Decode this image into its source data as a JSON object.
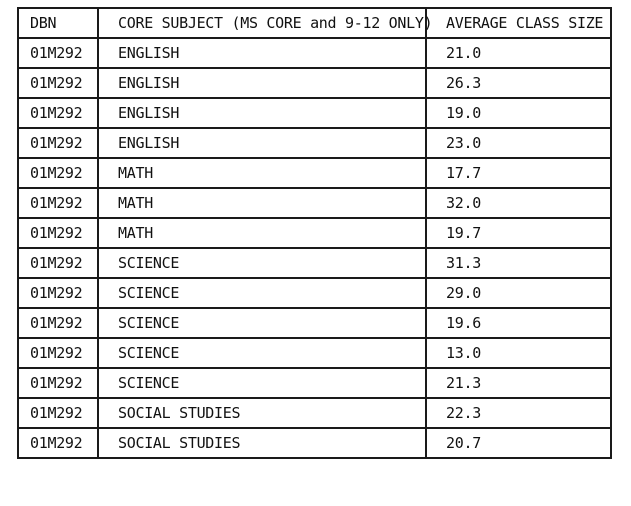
{
  "table": {
    "headers": [
      "DBN",
      "CORE SUBJECT (MS CORE and 9-12 ONLY)",
      "AVERAGE CLASS SIZE"
    ],
    "rows": [
      [
        "01M292",
        "ENGLISH",
        "21.0"
      ],
      [
        "01M292",
        "ENGLISH",
        "26.3"
      ],
      [
        "01M292",
        "ENGLISH",
        "19.0"
      ],
      [
        "01M292",
        "ENGLISH",
        "23.0"
      ],
      [
        "01M292",
        "MATH",
        "17.7"
      ],
      [
        "01M292",
        "MATH",
        "32.0"
      ],
      [
        "01M292",
        "MATH",
        "19.7"
      ],
      [
        "01M292",
        "SCIENCE",
        "31.3"
      ],
      [
        "01M292",
        "SCIENCE",
        "29.0"
      ],
      [
        "01M292",
        "SCIENCE",
        "19.6"
      ],
      [
        "01M292",
        "SCIENCE",
        "13.0"
      ],
      [
        "01M292",
        "SCIENCE",
        "21.3"
      ],
      [
        "01M292",
        "SOCIAL STUDIES",
        "22.3"
      ],
      [
        "01M292",
        "SOCIAL STUDIES",
        "20.7"
      ]
    ]
  }
}
